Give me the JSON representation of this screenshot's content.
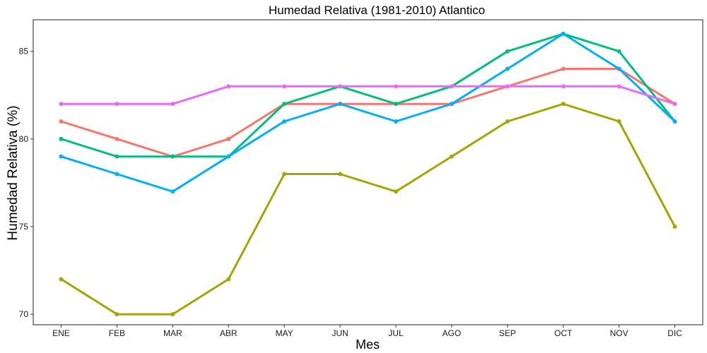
{
  "chart_data": {
    "type": "line",
    "title": "Humedad Relativa (1981-2010)  Atlantico",
    "xlabel": "Mes",
    "ylabel": "Humedad Relativa  (%)",
    "categories": [
      "ENE",
      "FEB",
      "MAR",
      "ABR",
      "MAY",
      "JUN",
      "JUL",
      "AGO",
      "SEP",
      "OCT",
      "NOV",
      "DIC"
    ],
    "yticks": [
      70,
      75,
      80,
      85
    ],
    "ylim": [
      69.4,
      86.8
    ],
    "grid": false,
    "legend": "none",
    "series": [
      {
        "color": "#F8766D",
        "values": [
          81,
          80,
          79,
          80,
          82,
          82,
          82,
          82,
          83,
          84,
          84,
          82
        ]
      },
      {
        "color": "#A3A500",
        "values": [
          72,
          70,
          70,
          72,
          78,
          78,
          77,
          79,
          81,
          82,
          81,
          75
        ]
      },
      {
        "color": "#00BF7D",
        "values": [
          80,
          79,
          79,
          79,
          82,
          83,
          82,
          83,
          85,
          86,
          85,
          81
        ]
      },
      {
        "color": "#00B0F6",
        "values": [
          79,
          78,
          77,
          79,
          81,
          82,
          81,
          82,
          84,
          86,
          84,
          81
        ]
      },
      {
        "color": "#E76BF3",
        "values": [
          82,
          82,
          82,
          83,
          83,
          83,
          83,
          83,
          83,
          83,
          83,
          82
        ]
      }
    ]
  }
}
